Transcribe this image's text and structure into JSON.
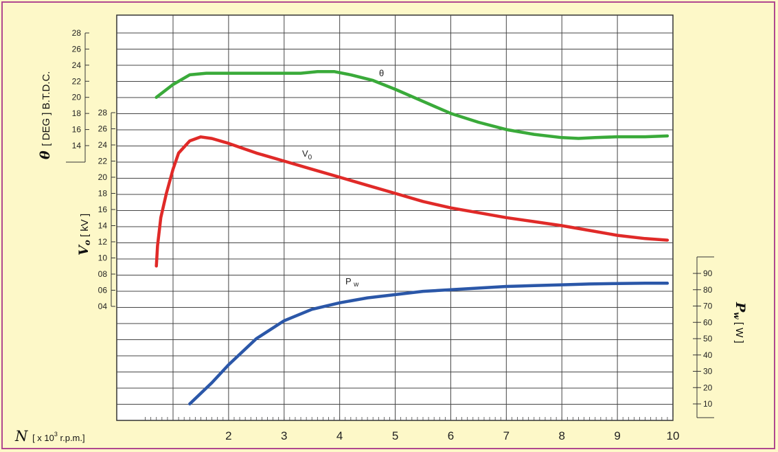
{
  "chart_data": {
    "type": "line",
    "x_axis": {
      "label_symbol": "N",
      "label_unit_prefix": "[ x 10",
      "label_unit_sup": "3",
      "label_unit_suffix": " r.p.m.]",
      "range": [
        0.5,
        10.2
      ],
      "ticks": [
        "2",
        "3",
        "4",
        "5",
        "6",
        "7",
        "8",
        "9",
        "10"
      ]
    },
    "axes": {
      "theta": {
        "label_symbol": "θ",
        "label_unit": "[ DEG ] B.T.D.C.",
        "range": [
          14,
          28
        ],
        "ticks": [
          "14",
          "16",
          "18",
          "20",
          "22",
          "24",
          "26",
          "28"
        ]
      },
      "v0": {
        "label_symbol": "V",
        "label_sub": "o",
        "label_unit": "[ kV ]",
        "range": [
          4,
          28
        ],
        "ticks": [
          "04",
          "06",
          "08",
          "10",
          "12",
          "14",
          "16",
          "18",
          "20",
          "22",
          "24",
          "26",
          "28"
        ]
      },
      "pw": {
        "label_symbol": "P",
        "label_sub": "w",
        "label_unit": "[ W ]",
        "range": [
          10,
          90
        ],
        "ticks": [
          "10",
          "20",
          "30",
          "40",
          "50",
          "60",
          "70",
          "80",
          "90"
        ]
      }
    },
    "series": [
      {
        "name": "θ",
        "axis": "theta",
        "color": "#3aaa3a",
        "x": [
          0.7,
          1.0,
          1.3,
          1.6,
          2.0,
          2.5,
          3.0,
          3.3,
          3.6,
          3.9,
          4.2,
          4.6,
          5.0,
          5.5,
          6.0,
          6.5,
          7.0,
          7.5,
          8.0,
          8.3,
          8.6,
          9.0,
          9.5,
          9.9
        ],
        "y": [
          20.0,
          21.6,
          22.8,
          23.0,
          23.0,
          23.0,
          23.0,
          23.0,
          23.2,
          23.2,
          22.8,
          22.1,
          21.0,
          19.5,
          18.0,
          16.9,
          16.0,
          15.4,
          15.0,
          14.9,
          15.0,
          15.1,
          15.1,
          15.2
        ]
      },
      {
        "name": "V",
        "label_sub": "0",
        "axis": "v0",
        "color": "#e02a28",
        "x": [
          0.7,
          0.72,
          0.78,
          0.88,
          1.0,
          1.1,
          1.3,
          1.5,
          1.7,
          2.0,
          2.5,
          3.0,
          3.5,
          4.0,
          4.5,
          5.0,
          5.5,
          6.0,
          6.5,
          7.0,
          7.5,
          8.0,
          8.5,
          9.0,
          9.5,
          9.9
        ],
        "y": [
          9.0,
          11.5,
          15.0,
          18.0,
          21.0,
          23.0,
          24.5,
          25.0,
          24.8,
          24.2,
          23.0,
          22.0,
          21.0,
          20.0,
          19.0,
          18.0,
          17.0,
          16.2,
          15.6,
          15.0,
          14.5,
          14.0,
          13.4,
          12.8,
          12.4,
          12.2
        ]
      },
      {
        "name": "P",
        "label_sub": "w",
        "axis": "pw",
        "color": "#2b57a8",
        "x": [
          1.3,
          1.7,
          2.0,
          2.5,
          3.0,
          3.5,
          4.0,
          4.5,
          5.0,
          5.5,
          6.0,
          6.5,
          7.0,
          7.5,
          8.0,
          8.5,
          9.0,
          9.5,
          9.9
        ],
        "y": [
          10.0,
          23.0,
          34.0,
          50.0,
          61.0,
          68.0,
          72.0,
          75.0,
          77.0,
          79.0,
          80.0,
          81.0,
          82.0,
          82.5,
          83.0,
          83.5,
          83.8,
          84.0,
          84.0
        ]
      }
    ]
  }
}
